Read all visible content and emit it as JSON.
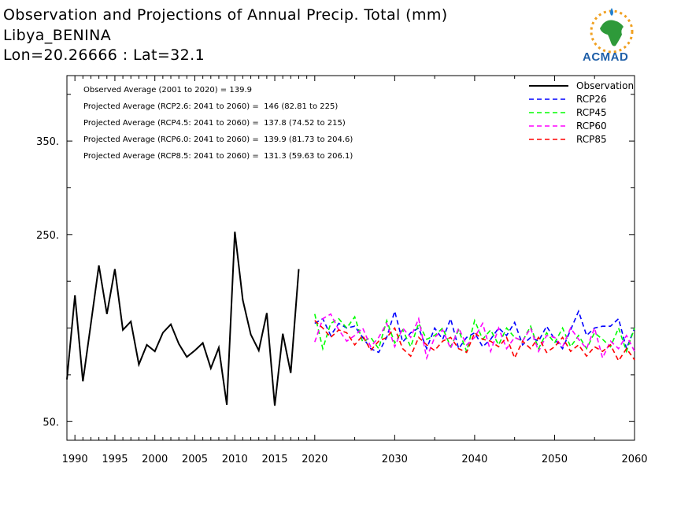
{
  "header": {
    "title": "Observation and Projections of Annual Precip. Total (mm)",
    "location": "Libya_BENINA",
    "coords": "Lon=20.26666 : Lat=32.1"
  },
  "logo": {
    "text": "ACMAD",
    "icon": "africa-raindrop-sun-logo"
  },
  "colors": {
    "Observation": "#000000",
    "RCP26": "#0000ff",
    "RCP45": "#00ff00",
    "RCP60": "#ff00ff",
    "RCP85": "#ff0000"
  },
  "chart_data": {
    "type": "line",
    "title": "Observation and Projections of Annual Precip. Total (mm)",
    "xlim": [
      1989,
      2060
    ],
    "ylim": [
      30,
      420
    ],
    "y_ticks": [
      50,
      250,
      350
    ],
    "y_tick_labels": [
      "50.",
      "250.",
      "350."
    ],
    "y_minor_ticks": [
      100,
      150,
      200,
      300,
      400
    ],
    "x_ticks": [
      1990,
      1995,
      2000,
      2005,
      2010,
      2015,
      2020,
      2030,
      2040,
      2050,
      2060
    ],
    "x_tick_labels": [
      "1990",
      "1995",
      "2000",
      "2005",
      "2010",
      "2015",
      "2020",
      "2030",
      "2040",
      "2050",
      "2060"
    ],
    "annotations": [
      "Observed Average (2001 to 2020) = 139.9",
      "Projected Average (RCP2.6: 2041 to 2060) =  146 (82.81 to 225)",
      "Projected Average (RCP4.5: 2041 to 2060) =  137.8 (74.52 to 215)",
      "Projected Average (RCP6.0: 2041 to 2060) =  139.9 (81.73 to 204.6)",
      "Projected Average (RCP8.5: 2041 to 2060) =  131.3 (59.63 to 206.1)"
    ],
    "legend": [
      "Observation",
      "RCP26",
      "RCP45",
      "RCP60",
      "RCP85"
    ],
    "legend_position": "top-right",
    "series": [
      {
        "name": "Observation",
        "style": "solid",
        "x": [
          1989,
          1990,
          1991,
          1992,
          1993,
          1994,
          1995,
          1996,
          1997,
          1998,
          1999,
          2000,
          2001,
          2002,
          2003,
          2004,
          2005,
          2006,
          2007,
          2008,
          2009,
          2010,
          2011,
          2012,
          2013,
          2014,
          2015,
          2016,
          2017,
          2018,
          2019
        ],
        "values": [
          95,
          185,
          93,
          155,
          217,
          165,
          213,
          148,
          157,
          111,
          132,
          125,
          145,
          154,
          133,
          119,
          126,
          134,
          107,
          129,
          68,
          253,
          180,
          143,
          126,
          166,
          67,
          144,
          102,
          213,
          null
        ]
      },
      {
        "name": "RCP26",
        "style": "dashed",
        "x": [
          2020,
          2021,
          2022,
          2023,
          2024,
          2025,
          2026,
          2027,
          2028,
          2029,
          2030,
          2031,
          2032,
          2033,
          2034,
          2035,
          2036,
          2037,
          2038,
          2039,
          2040,
          2041,
          2042,
          2043,
          2044,
          2045,
          2046,
          2047,
          2048,
          2049,
          2050,
          2051,
          2052,
          2053,
          2054,
          2055,
          2056,
          2057,
          2058,
          2059,
          2060
        ],
        "values": [
          155,
          160,
          142,
          155,
          150,
          152,
          140,
          128,
          124,
          140,
          168,
          135,
          145,
          150,
          128,
          150,
          138,
          160,
          128,
          140,
          145,
          130,
          138,
          150,
          142,
          156,
          132,
          140,
          136,
          152,
          138,
          128,
          148,
          168,
          142,
          150,
          152,
          152,
          160,
          128,
          150
        ]
      },
      {
        "name": "RCP45",
        "style": "dashed",
        "x": [
          2020,
          2021,
          2022,
          2023,
          2024,
          2025,
          2026,
          2027,
          2028,
          2029,
          2030,
          2031,
          2032,
          2033,
          2034,
          2035,
          2036,
          2037,
          2038,
          2039,
          2040,
          2041,
          2042,
          2043,
          2044,
          2045,
          2046,
          2047,
          2048,
          2049,
          2050,
          2051,
          2052,
          2053,
          2054,
          2055,
          2056,
          2057,
          2058,
          2059,
          2060
        ],
        "values": [
          165,
          128,
          155,
          160,
          150,
          162,
          135,
          140,
          128,
          158,
          134,
          148,
          130,
          155,
          138,
          142,
          150,
          130,
          148,
          125,
          158,
          138,
          148,
          132,
          150,
          140,
          136,
          152,
          128,
          145,
          134,
          150,
          130,
          142,
          128,
          145,
          138,
          130,
          150,
          125,
          150
        ]
      },
      {
        "name": "RCP60",
        "style": "dashed",
        "x": [
          2020,
          2021,
          2022,
          2023,
          2024,
          2025,
          2026,
          2027,
          2028,
          2029,
          2030,
          2031,
          2032,
          2033,
          2034,
          2035,
          2036,
          2037,
          2038,
          2039,
          2040,
          2041,
          2042,
          2043,
          2044,
          2045,
          2046,
          2047,
          2048,
          2049,
          2050,
          2051,
          2052,
          2053,
          2054,
          2055,
          2056,
          2057,
          2058,
          2059,
          2060
        ],
        "values": [
          135,
          160,
          165,
          148,
          136,
          142,
          150,
          130,
          140,
          155,
          130,
          150,
          140,
          160,
          118,
          140,
          148,
          128,
          150,
          132,
          140,
          155,
          125,
          150,
          128,
          140,
          136,
          150,
          125,
          142,
          140,
          130,
          150,
          138,
          128,
          150,
          118,
          136,
          128,
          142,
          125
        ]
      },
      {
        "name": "RCP85",
        "style": "dashed",
        "x": [
          2020,
          2021,
          2022,
          2023,
          2024,
          2025,
          2026,
          2027,
          2028,
          2029,
          2030,
          2031,
          2032,
          2033,
          2034,
          2035,
          2036,
          2037,
          2038,
          2039,
          2040,
          2041,
          2042,
          2043,
          2044,
          2045,
          2046,
          2047,
          2048,
          2049,
          2050,
          2051,
          2052,
          2053,
          2054,
          2055,
          2056,
          2057,
          2058,
          2059,
          2060
        ],
        "values": [
          158,
          150,
          140,
          148,
          145,
          132,
          142,
          126,
          136,
          140,
          150,
          128,
          120,
          140,
          132,
          126,
          136,
          140,
          128,
          124,
          145,
          138,
          136,
          130,
          140,
          118,
          136,
          128,
          140,
          124,
          130,
          140,
          125,
          132,
          120,
          130,
          125,
          132,
          115,
          128,
          116
        ]
      }
    ]
  }
}
